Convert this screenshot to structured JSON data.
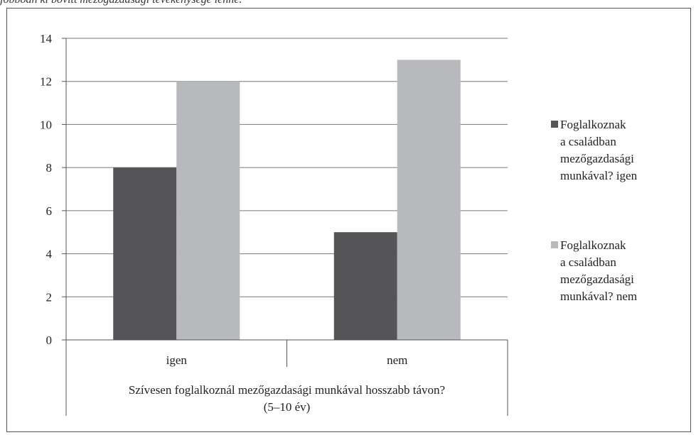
{
  "caption": "jobboan ki bovitt mezogazdasagi tevekenysege lenne.",
  "chart_data": {
    "type": "bar",
    "categories": [
      "igen",
      "nem"
    ],
    "series": [
      {
        "name": "Foglalkoznak a családban mezőgazdasági munkával? igen",
        "values": [
          8,
          5
        ],
        "color": "#555557"
      },
      {
        "name": "Foglalkoznak a családban mezőgazdasági munkával? nem",
        "values": [
          12,
          13
        ],
        "color": "#b8b9bc"
      }
    ],
    "xlabel": "Szívesen foglalkoznál mezőgazdasági munkával hosszabb távon? (5–10 év)",
    "ylabel": "",
    "ylim": [
      0,
      14
    ],
    "yticks": [
      0,
      2,
      4,
      6,
      8,
      10,
      12,
      14
    ],
    "grid": true,
    "legend_position": "right"
  },
  "legend": {
    "items": [
      {
        "lines": [
          "Foglalkoznak",
          "a családban",
          "mezőgazdasági",
          "munkával? igen"
        ]
      },
      {
        "lines": [
          "Foglalkoznak",
          "a családban",
          "mezőgazdasági",
          "munkával? nem"
        ]
      }
    ]
  },
  "xlabel_lines": [
    "Szívesen foglalkoznál mezőgazdasági munkával hosszabb távon?",
    "(5–10 év)"
  ]
}
